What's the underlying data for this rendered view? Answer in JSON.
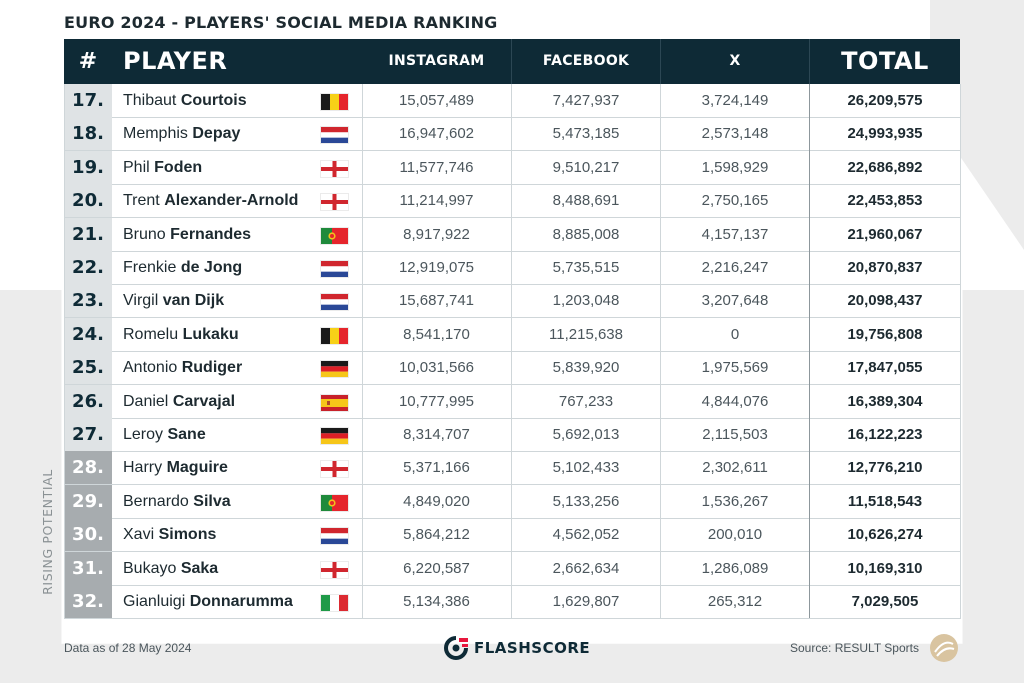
{
  "title": "EURO 2024 - PLAYERS' SOCIAL MEDIA RANKING",
  "headers": {
    "rank": "#",
    "player": "PLAYER",
    "instagram": "INSTAGRAM",
    "facebook": "FACEBOOK",
    "x": "X",
    "total": "TOTAL"
  },
  "rising_label": "RISING POTENTIAL",
  "footer": {
    "data_note": "Data as of 28 May 2024",
    "brand": "FLASHSCORE",
    "source": "Source: RESULT Sports"
  },
  "colors": {
    "header_bg": "#0e2a36",
    "rank_bg": "#dfe3e5",
    "rising_rank_bg": "#a7acaf",
    "bg_shape": "#ececec"
  },
  "chart_data": {
    "type": "table",
    "columns": [
      "#",
      "PLAYER",
      "INSTAGRAM",
      "FACEBOOK",
      "X",
      "TOTAL"
    ],
    "rows": [
      {
        "rank": "17.",
        "first": "Thibaut",
        "last": "Courtois",
        "flag": "belgium",
        "instagram": "15,057,489",
        "facebook": "7,427,937",
        "x": "3,724,149",
        "total": "26,209,575",
        "rising": false
      },
      {
        "rank": "18.",
        "first": "Memphis",
        "last": "Depay",
        "flag": "netherlands",
        "instagram": "16,947,602",
        "facebook": "5,473,185",
        "x": "2,573,148",
        "total": "24,993,935",
        "rising": false
      },
      {
        "rank": "19.",
        "first": "Phil",
        "last": "Foden",
        "flag": "england",
        "instagram": "11,577,746",
        "facebook": "9,510,217",
        "x": "1,598,929",
        "total": "22,686,892",
        "rising": false
      },
      {
        "rank": "20.",
        "first": "Trent",
        "last": "Alexander-Arnold",
        "flag": "england",
        "instagram": "11,214,997",
        "facebook": "8,488,691",
        "x": "2,750,165",
        "total": "22,453,853",
        "rising": false
      },
      {
        "rank": "21.",
        "first": "Bruno",
        "last": "Fernandes",
        "flag": "portugal",
        "instagram": "8,917,922",
        "facebook": "8,885,008",
        "x": "4,157,137",
        "total": "21,960,067",
        "rising": false
      },
      {
        "rank": "22.",
        "first": "Frenkie",
        "last": "de Jong",
        "flag": "netherlands",
        "instagram": "12,919,075",
        "facebook": "5,735,515",
        "x": "2,216,247",
        "total": "20,870,837",
        "rising": false
      },
      {
        "rank": "23.",
        "first": "Virgil",
        "last": "van Dijk",
        "flag": "netherlands",
        "instagram": "15,687,741",
        "facebook": "1,203,048",
        "x": "3,207,648",
        "total": "20,098,437",
        "rising": false
      },
      {
        "rank": "24.",
        "first": "Romelu",
        "last": "Lukaku",
        "flag": "belgium",
        "instagram": "8,541,170",
        "facebook": "11,215,638",
        "x": "0",
        "total": "19,756,808",
        "rising": false
      },
      {
        "rank": "25.",
        "first": "Antonio",
        "last": "Rudiger",
        "flag": "germany",
        "instagram": "10,031,566",
        "facebook": "5,839,920",
        "x": "1,975,569",
        "total": "17,847,055",
        "rising": false
      },
      {
        "rank": "26.",
        "first": "Daniel",
        "last": "Carvajal",
        "flag": "spain",
        "instagram": "10,777,995",
        "facebook": "767,233",
        "x": "4,844,076",
        "total": "16,389,304",
        "rising": false
      },
      {
        "rank": "27.",
        "first": "Leroy",
        "last": "Sane",
        "flag": "germany",
        "instagram": "8,314,707",
        "facebook": "5,692,013",
        "x": "2,115,503",
        "total": "16,122,223",
        "rising": false
      },
      {
        "rank": "28.",
        "first": "Harry",
        "last": "Maguire",
        "flag": "england",
        "instagram": "5,371,166",
        "facebook": "5,102,433",
        "x": "2,302,611",
        "total": "12,776,210",
        "rising": true
      },
      {
        "rank": "29.",
        "first": "Bernardo",
        "last": "Silva",
        "flag": "portugal",
        "instagram": "4,849,020",
        "facebook": "5,133,256",
        "x": "1,536,267",
        "total": "11,518,543",
        "rising": true
      },
      {
        "rank": "30.",
        "first": "Xavi",
        "last": "Simons",
        "flag": "netherlands",
        "instagram": "5,864,212",
        "facebook": "4,562,052",
        "x": "200,010",
        "total": "10,626,274",
        "rising": true
      },
      {
        "rank": "31.",
        "first": "Bukayo",
        "last": "Saka",
        "flag": "england",
        "instagram": "6,220,587",
        "facebook": "2,662,634",
        "x": "1,286,089",
        "total": "10,169,310",
        "rising": true
      },
      {
        "rank": "32.",
        "first": "Gianluigi",
        "last": "Donnarumma",
        "flag": "italy",
        "instagram": "5,134,386",
        "facebook": "1,629,807",
        "x": "265,312",
        "total": "7,029,505",
        "rising": true
      }
    ]
  }
}
